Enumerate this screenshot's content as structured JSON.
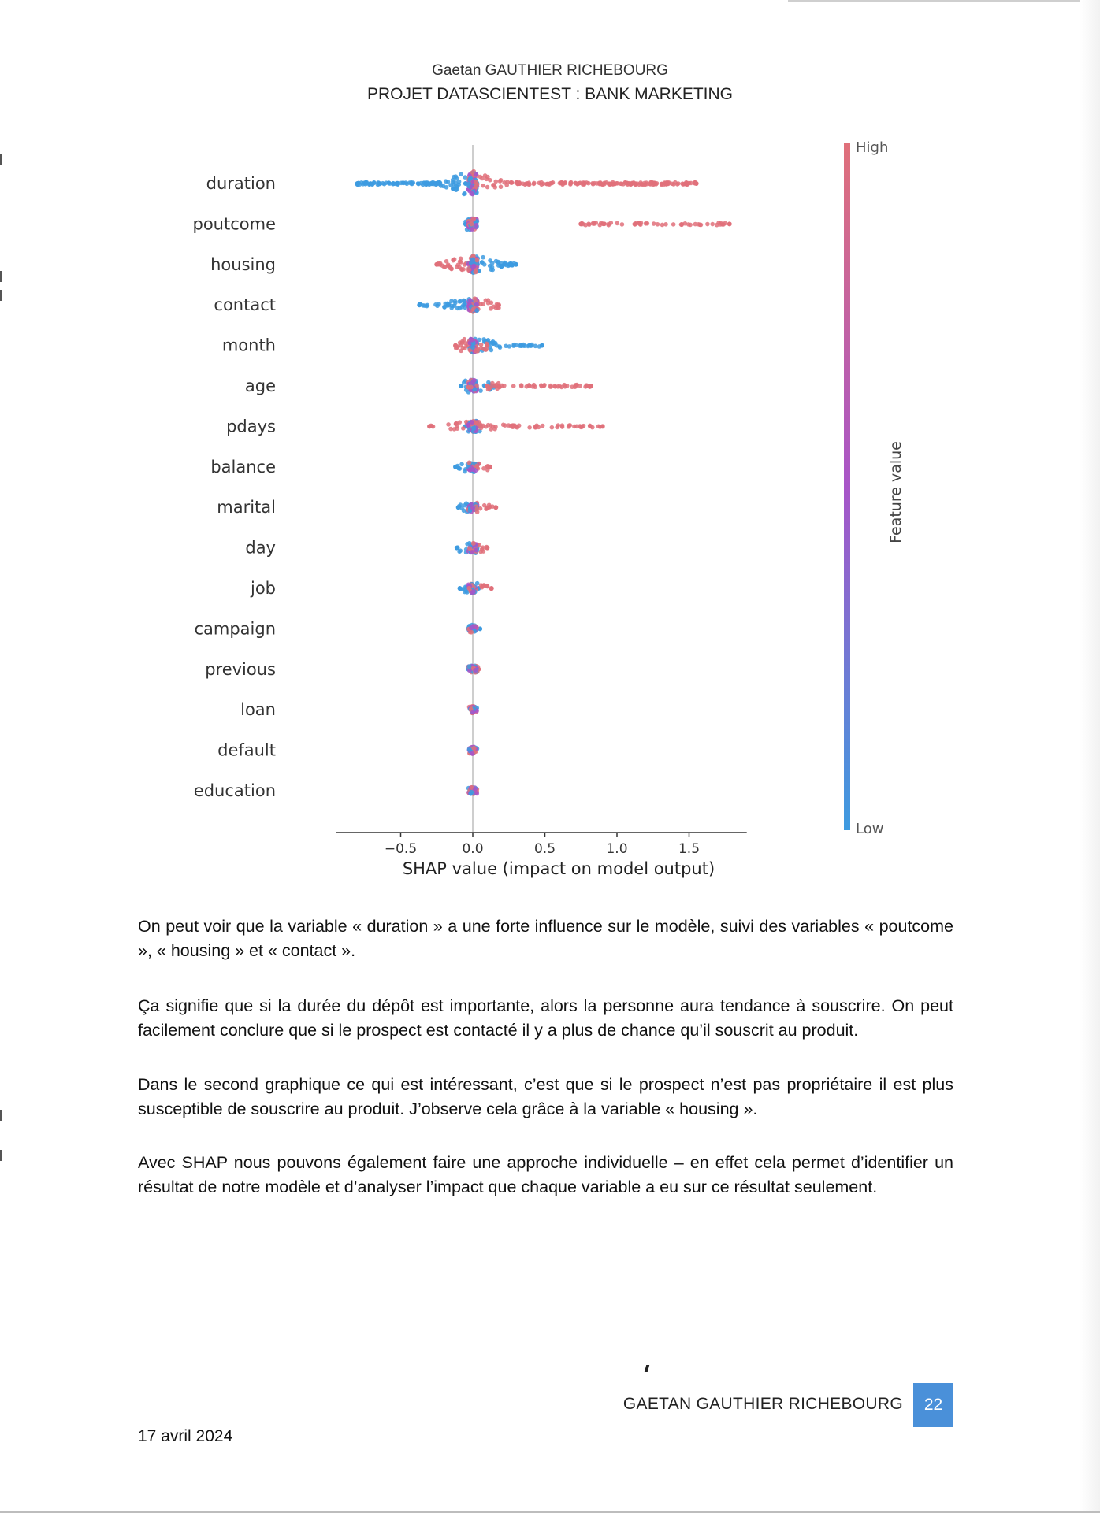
{
  "header": {
    "author": "Gaetan GAUTHIER RICHEBOURG",
    "project": "PROJET DATASCIENTEST : BANK MARKETING"
  },
  "chart_data": {
    "type": "scatter",
    "subtype": "shap-beeswarm",
    "xlabel": "SHAP value (impact on model output)",
    "ylabel": "",
    "xlim": [
      -0.95,
      1.9
    ],
    "xticks": [
      -0.5,
      0.0,
      0.5,
      1.0,
      1.5
    ],
    "xtick_labels": [
      "−0.5",
      "0.0",
      "0.5",
      "1.0",
      "1.5"
    ],
    "grid": false,
    "colorbar": {
      "label": "Feature value",
      "high_label": "High",
      "low_label": "Low",
      "high_color": "#e0707a",
      "mid_color": "#a855c8",
      "low_color": "#3d9be0"
    },
    "features": [
      {
        "name": "duration",
        "min": -0.8,
        "max": 1.55,
        "high_range": [
          0.0,
          1.55
        ],
        "low_range": [
          -0.8,
          -0.05
        ],
        "density": 1.0
      },
      {
        "name": "poutcome",
        "min": -0.05,
        "max": 1.78,
        "high_range": [
          0.75,
          1.78
        ],
        "low_range": [
          -0.05,
          -0.01
        ],
        "density": 0.45
      },
      {
        "name": "housing",
        "min": -0.25,
        "max": 0.3,
        "high_range": [
          -0.25,
          0.0
        ],
        "low_range": [
          0.0,
          0.3
        ],
        "density": 0.75
      },
      {
        "name": "contact",
        "min": -0.37,
        "max": 0.18,
        "high_range": [
          0.0,
          0.18
        ],
        "low_range": [
          -0.37,
          -0.02
        ],
        "density": 0.55
      },
      {
        "name": "month",
        "min": -0.12,
        "max": 0.48,
        "high_range": [
          -0.12,
          0.1
        ],
        "low_range": [
          0.0,
          0.48
        ],
        "density": 0.6
      },
      {
        "name": "age",
        "min": -0.08,
        "max": 0.82,
        "high_range": [
          0.1,
          0.82
        ],
        "low_range": [
          -0.08,
          0.15
        ],
        "density": 0.5
      },
      {
        "name": "pdays",
        "min": -0.3,
        "max": 0.9,
        "high_range": [
          -0.3,
          0.9
        ],
        "low_range": [
          -0.05,
          0.05
        ],
        "density": 0.45
      },
      {
        "name": "balance",
        "min": -0.12,
        "max": 0.12,
        "high_range": [
          0.02,
          0.12
        ],
        "low_range": [
          -0.12,
          0.02
        ],
        "density": 0.35
      },
      {
        "name": "marital",
        "min": -0.1,
        "max": 0.16,
        "high_range": [
          0.02,
          0.16
        ],
        "low_range": [
          -0.1,
          0.03
        ],
        "density": 0.35
      },
      {
        "name": "day",
        "min": -0.11,
        "max": 0.1,
        "high_range": [
          -0.02,
          0.1
        ],
        "low_range": [
          -0.11,
          0.03
        ],
        "density": 0.35
      },
      {
        "name": "job",
        "min": -0.09,
        "max": 0.13,
        "high_range": [
          0.0,
          0.13
        ],
        "low_range": [
          -0.09,
          0.04
        ],
        "density": 0.35
      },
      {
        "name": "campaign",
        "min": -0.03,
        "max": 0.05,
        "high_range": [
          -0.02,
          0.02
        ],
        "low_range": [
          -0.03,
          0.05
        ],
        "density": 0.25
      },
      {
        "name": "previous",
        "min": -0.03,
        "max": 0.04,
        "high_range": [
          -0.01,
          0.04
        ],
        "low_range": [
          -0.03,
          0.02
        ],
        "density": 0.2
      },
      {
        "name": "loan",
        "min": -0.01,
        "max": 0.01,
        "high_range": [
          -0.01,
          0.0
        ],
        "low_range": [
          0.0,
          0.01
        ],
        "density": 0.2
      },
      {
        "name": "default",
        "min": -0.01,
        "max": 0.01,
        "high_range": [
          -0.01,
          0.0
        ],
        "low_range": [
          0.0,
          0.01
        ],
        "density": 0.2
      },
      {
        "name": "education",
        "min": -0.01,
        "max": 0.01,
        "high_range": [
          -0.01,
          0.01
        ],
        "low_range": [
          -0.01,
          0.01
        ],
        "density": 0.2
      }
    ]
  },
  "body": {
    "p1": "On peut voir que la variable « duration » a une forte influence sur le modèle, suivi des variables « poutcome », « housing » et « contact ».",
    "p2": "Ça signifie que si la durée du dépôt est importante, alors la personne aura tendance à souscrire. On peut facilement conclure que si le prospect est contacté il y a plus de chance qu’il souscrit au produit.",
    "p3": "Dans le second graphique ce qui est intéressant, c’est que si le prospect n’est pas propriétaire il est plus susceptible de souscrire au produit. J’observe cela grâce à la variable « housing ».",
    "p4": "Avec SHAP nous pouvons également faire une approche individuelle – en effet cela permet d’identifier un résultat de notre modèle et d’analyser l’impact que chaque variable a eu sur ce résultat seulement."
  },
  "footer": {
    "name": "GAETAN GAUTHIER RICHEBOURG",
    "page_number": "22",
    "date": "17 avril 2024"
  }
}
